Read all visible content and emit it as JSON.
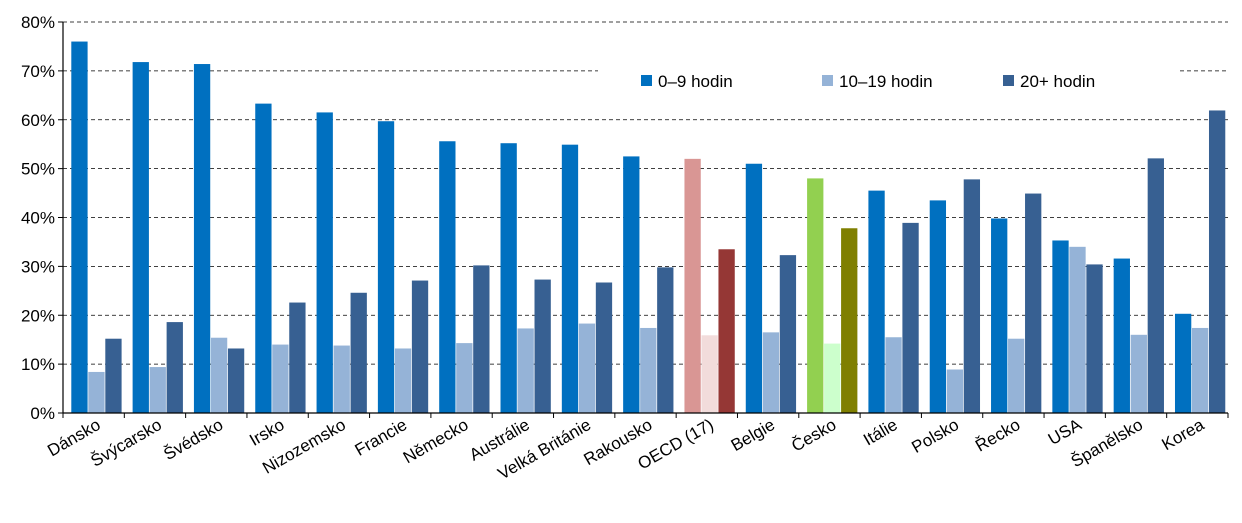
{
  "chart_data": {
    "type": "bar",
    "ylim": [
      0,
      80
    ],
    "yticks": [
      "0%",
      "10%",
      "20%",
      "30%",
      "40%",
      "50%",
      "60%",
      "70%",
      "80%"
    ],
    "grid": true,
    "legend_position": "top-right",
    "categories": [
      "Dánsko",
      "Švýcarsko",
      "Švédsko",
      "Irsko",
      "Nizozemsko",
      "Francie",
      "Německo",
      "Austrálie",
      "Velká Británie",
      "Rakousko",
      "OECD (17)",
      "Belgie",
      "Česko",
      "Itálie",
      "Polsko",
      "Řecko",
      "USA",
      "Španělsko",
      "Korea"
    ],
    "series": [
      {
        "name": "0–9 hodin",
        "color": "#0070c0",
        "values": [
          76,
          71.8,
          71.4,
          63.3,
          61.5,
          59.7,
          55.6,
          55.2,
          54.9,
          52.5,
          52,
          51,
          48,
          45.5,
          43.5,
          39.8,
          35.3,
          31.6,
          20.3
        ]
      },
      {
        "name": "10–19 hodin",
        "color": "#95b3d7",
        "values": [
          8.4,
          9.4,
          15.4,
          14,
          13.8,
          13.2,
          14.3,
          17.3,
          18.3,
          17.4,
          15.9,
          16.5,
          14.2,
          15.5,
          8.9,
          15.2,
          34,
          16,
          17.4
        ]
      },
      {
        "name": "20+ hodin",
        "color": "#376092",
        "values": [
          15.2,
          18.6,
          13.2,
          22.6,
          24.6,
          27.1,
          30.2,
          27.3,
          26.7,
          29.8,
          33.5,
          32.3,
          37.8,
          38.9,
          47.8,
          44.9,
          30.4,
          52.1,
          61.9
        ]
      }
    ],
    "highlight_colors": {
      "OECD (17)": [
        "#d99694",
        "#f2dcdb",
        "#953735"
      ],
      "Česko": [
        "#92d050",
        "#ccffcc",
        "#7f7f00"
      ]
    }
  }
}
